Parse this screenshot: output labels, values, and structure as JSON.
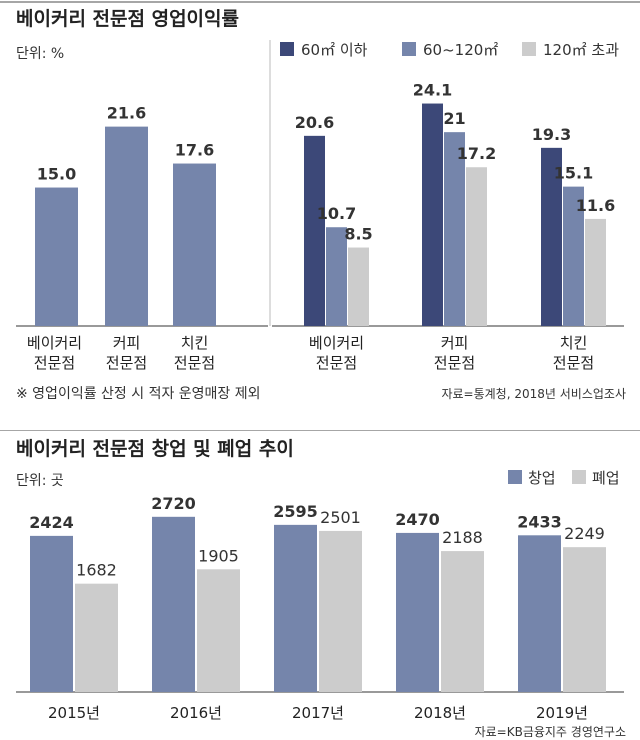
{
  "chart_data": [
    {
      "type": "bar",
      "title": "베이커리 전문점 영업이익률",
      "unit": "단위: %",
      "panels": [
        {
          "categories": [
            [
              "베이커리",
              "전문점"
            ],
            [
              "커피",
              "전문점"
            ],
            [
              "치킨",
              "전문점"
            ]
          ],
          "series": [
            {
              "values": [
                15.0,
                21.6,
                17.6
              ]
            }
          ]
        },
        {
          "categories": [
            [
              "베이커리",
              "전문점"
            ],
            [
              "커피",
              "전문점"
            ],
            [
              "치킨",
              "전문점"
            ]
          ],
          "series": [
            {
              "name": "60㎡ 이하",
              "values": [
                20.6,
                24.1,
                19.3
              ]
            },
            {
              "name": "60~120㎡",
              "values": [
                10.7,
                21,
                15.1
              ]
            },
            {
              "name": "120㎡ 초과",
              "values": [
                8.5,
                17.2,
                11.6
              ]
            }
          ]
        }
      ],
      "ylim": [
        0,
        26
      ],
      "value_labels": [
        [
          "15.0",
          "21.6",
          "17.6"
        ],
        [
          [
            "20.6",
            "24.1",
            "19.3"
          ],
          [
            "10.7",
            "21",
            "15.1"
          ],
          [
            "8.5",
            "17.2",
            "11.6"
          ]
        ]
      ],
      "note": "※ 영업이익률 산정 시 적자 운영매장 제외",
      "source": "자료=통계청, 2018년 서비스업조사",
      "colors": {
        "dark": "#3c4878",
        "mid": "#7585ab",
        "light": "#cccccc"
      }
    },
    {
      "type": "bar",
      "title": "베이커리 전문점 창업 및 폐업 추이",
      "unit": "단위: 곳",
      "categories": [
        "2015년",
        "2016년",
        "2017년",
        "2018년",
        "2019년"
      ],
      "series": [
        {
          "name": "창업",
          "values": [
            2424,
            2720,
            2595,
            2470,
            2433
          ]
        },
        {
          "name": "폐업",
          "values": [
            1682,
            1905,
            2501,
            2188,
            2249
          ]
        }
      ],
      "ylim": [
        0,
        2950
      ],
      "source": "자료=KB금융지주 경영연구소",
      "colors": {
        "open": "#7585ab",
        "close": "#cccccc"
      }
    }
  ]
}
